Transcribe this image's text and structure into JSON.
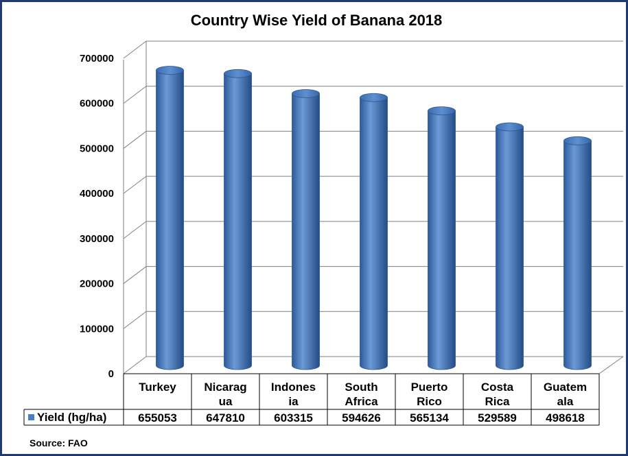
{
  "chart_data": {
    "type": "bar",
    "title": "Country Wise Yield of Banana 2018",
    "categories": [
      "Turkey",
      "Nicaragua",
      "Indonesia",
      "South Africa",
      "Puerto Rico",
      "Costa Rica",
      "Guatemala"
    ],
    "category_lines": [
      [
        "Turkey"
      ],
      [
        "Nicarag",
        "ua"
      ],
      [
        "Indones",
        "ia"
      ],
      [
        "South",
        "Africa"
      ],
      [
        "Puerto",
        "Rico"
      ],
      [
        "Costa",
        "Rica"
      ],
      [
        "Guatem",
        "ala"
      ]
    ],
    "series": [
      {
        "name": "Yield (hg/ha)",
        "values": [
          655053,
          647810,
          603315,
          594626,
          565134,
          529589,
          498618
        ]
      }
    ],
    "value_labels": [
      "655053",
      "647810",
      "603315",
      "594626",
      "565134",
      "529589",
      "498618"
    ],
    "yticks": [
      "0",
      "100000",
      "200000",
      "300000",
      "400000",
      "500000",
      "600000",
      "700000"
    ],
    "ylim": [
      0,
      700000
    ],
    "style": "3d-cylinder",
    "grid": true,
    "legend": "data-table",
    "bar_color": "#4a7ec4",
    "source": "Source: FAO"
  }
}
